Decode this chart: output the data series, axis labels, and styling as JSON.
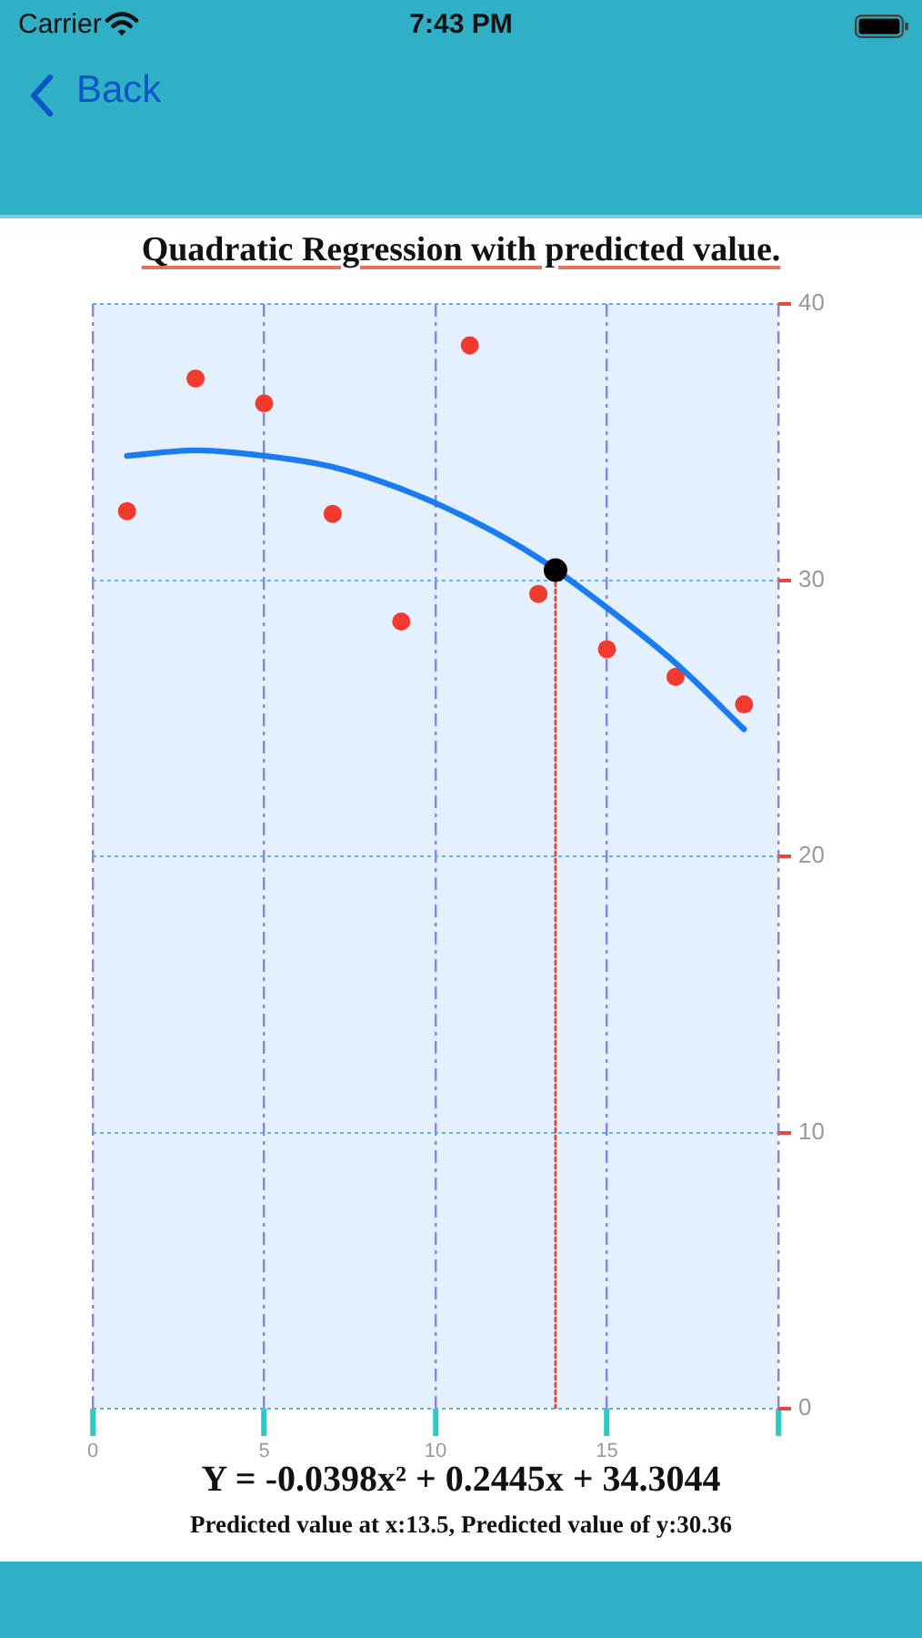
{
  "chart_data": {
    "type": "scatter",
    "title": "Quadratic Regression with predicted value.",
    "annotations": [
      "Carrier",
      "7:43 PM",
      "Back",
      "Y = -0.0398x² + 0.2445x + 34.3044",
      "Predicted value at x:13.5, Predicted value of y:30.36"
    ],
    "xlim": [
      0,
      20
    ],
    "xticks": [
      0,
      5,
      10,
      15,
      {
        "value": 20,
        "label": null
      }
    ],
    "ylim": [
      0,
      40
    ],
    "yticks": [
      0,
      10,
      20,
      30,
      40
    ],
    "grid": true,
    "series": [
      {
        "type": "scatter",
        "color": "#f23b2e",
        "marker": "circle",
        "x": [
          1,
          3,
          5,
          7,
          9,
          11,
          13,
          15,
          17,
          19
        ],
        "values": [
          32.5,
          37.3,
          36.4,
          32.4,
          28.5,
          38.5,
          29.5,
          27.5,
          26.5,
          25.5
        ]
      },
      {
        "type": "line",
        "color": "#e8483b",
        "marker": "none",
        "line_style": "dotted",
        "x": [
          13.5,
          13.5
        ],
        "values": [
          0,
          30.36
        ]
      },
      {
        "type": "line",
        "color": "#1a7cf0",
        "marker": "none",
        "line_style": "solid",
        "x": [
          1,
          3,
          5,
          7,
          9,
          11,
          13,
          15,
          17,
          19
        ],
        "values": [
          34.5,
          34.7,
          34.5,
          34.1,
          33.3,
          32.2,
          30.8,
          29.0,
          27.0,
          24.6
        ]
      },
      {
        "type": "scatter",
        "color": "#000000",
        "marker": "circle",
        "x": [
          13.5
        ],
        "values": [
          30.36
        ]
      }
    ]
  }
}
